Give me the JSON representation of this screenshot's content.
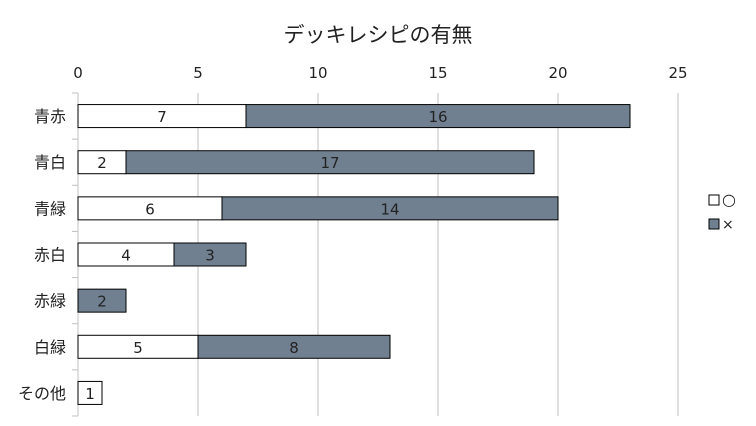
{
  "chart_data": {
    "type": "bar",
    "orientation": "horizontal",
    "stacked": true,
    "title": "デッキレシピの有無",
    "xlabel": "",
    "ylabel": "",
    "xlim": [
      0,
      25
    ],
    "x_ticks": [
      0,
      5,
      10,
      15,
      20,
      25
    ],
    "grid": true,
    "legend_position": "right",
    "categories": [
      "青赤",
      "青白",
      "青緑",
      "赤白",
      "赤緑",
      "白緑",
      "その他"
    ],
    "series": [
      {
        "name": "○",
        "color": "#ffffff",
        "values": [
          7,
          2,
          6,
          4,
          0,
          5,
          1
        ]
      },
      {
        "name": "×",
        "color": "#708090",
        "values": [
          16,
          17,
          14,
          3,
          2,
          8,
          0
        ]
      }
    ]
  }
}
